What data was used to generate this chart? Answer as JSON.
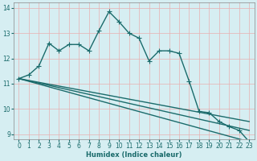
{
  "xlabel": "Humidex (Indice chaleur)",
  "background_color": "#d6eef2",
  "grid_color": "#e8b0b0",
  "line_color": "#1a6b6b",
  "xlim": [
    -0.5,
    23.5
  ],
  "ylim": [
    8.8,
    14.2
  ],
  "yticks": [
    9,
    10,
    11,
    12,
    13,
    14
  ],
  "xticks": [
    0,
    1,
    2,
    3,
    4,
    5,
    6,
    7,
    8,
    9,
    10,
    11,
    12,
    13,
    14,
    15,
    16,
    17,
    18,
    19,
    20,
    21,
    22,
    23
  ],
  "series1_x": [
    0,
    1,
    2,
    3,
    4,
    5,
    6,
    7,
    8,
    9,
    10,
    11,
    12,
    13,
    14,
    15,
    16,
    17,
    18,
    19,
    20,
    21,
    22,
    23
  ],
  "series1_y": [
    11.2,
    11.35,
    11.7,
    12.6,
    12.3,
    12.55,
    12.55,
    12.3,
    13.1,
    13.85,
    13.45,
    13.0,
    12.8,
    11.9,
    12.3,
    12.3,
    12.2,
    11.1,
    9.9,
    9.85,
    9.5,
    9.3,
    9.15,
    8.7
  ],
  "series2_x": [
    0,
    23
  ],
  "series2_y": [
    11.2,
    8.7
  ],
  "series3_x": [
    0,
    23
  ],
  "series3_y": [
    11.2,
    9.15
  ],
  "series4_x": [
    0,
    23
  ],
  "series4_y": [
    11.2,
    9.5
  ],
  "marker_size": 2.5,
  "line_width": 1.0,
  "axis_fontsize": 6,
  "tick_fontsize": 5.5
}
